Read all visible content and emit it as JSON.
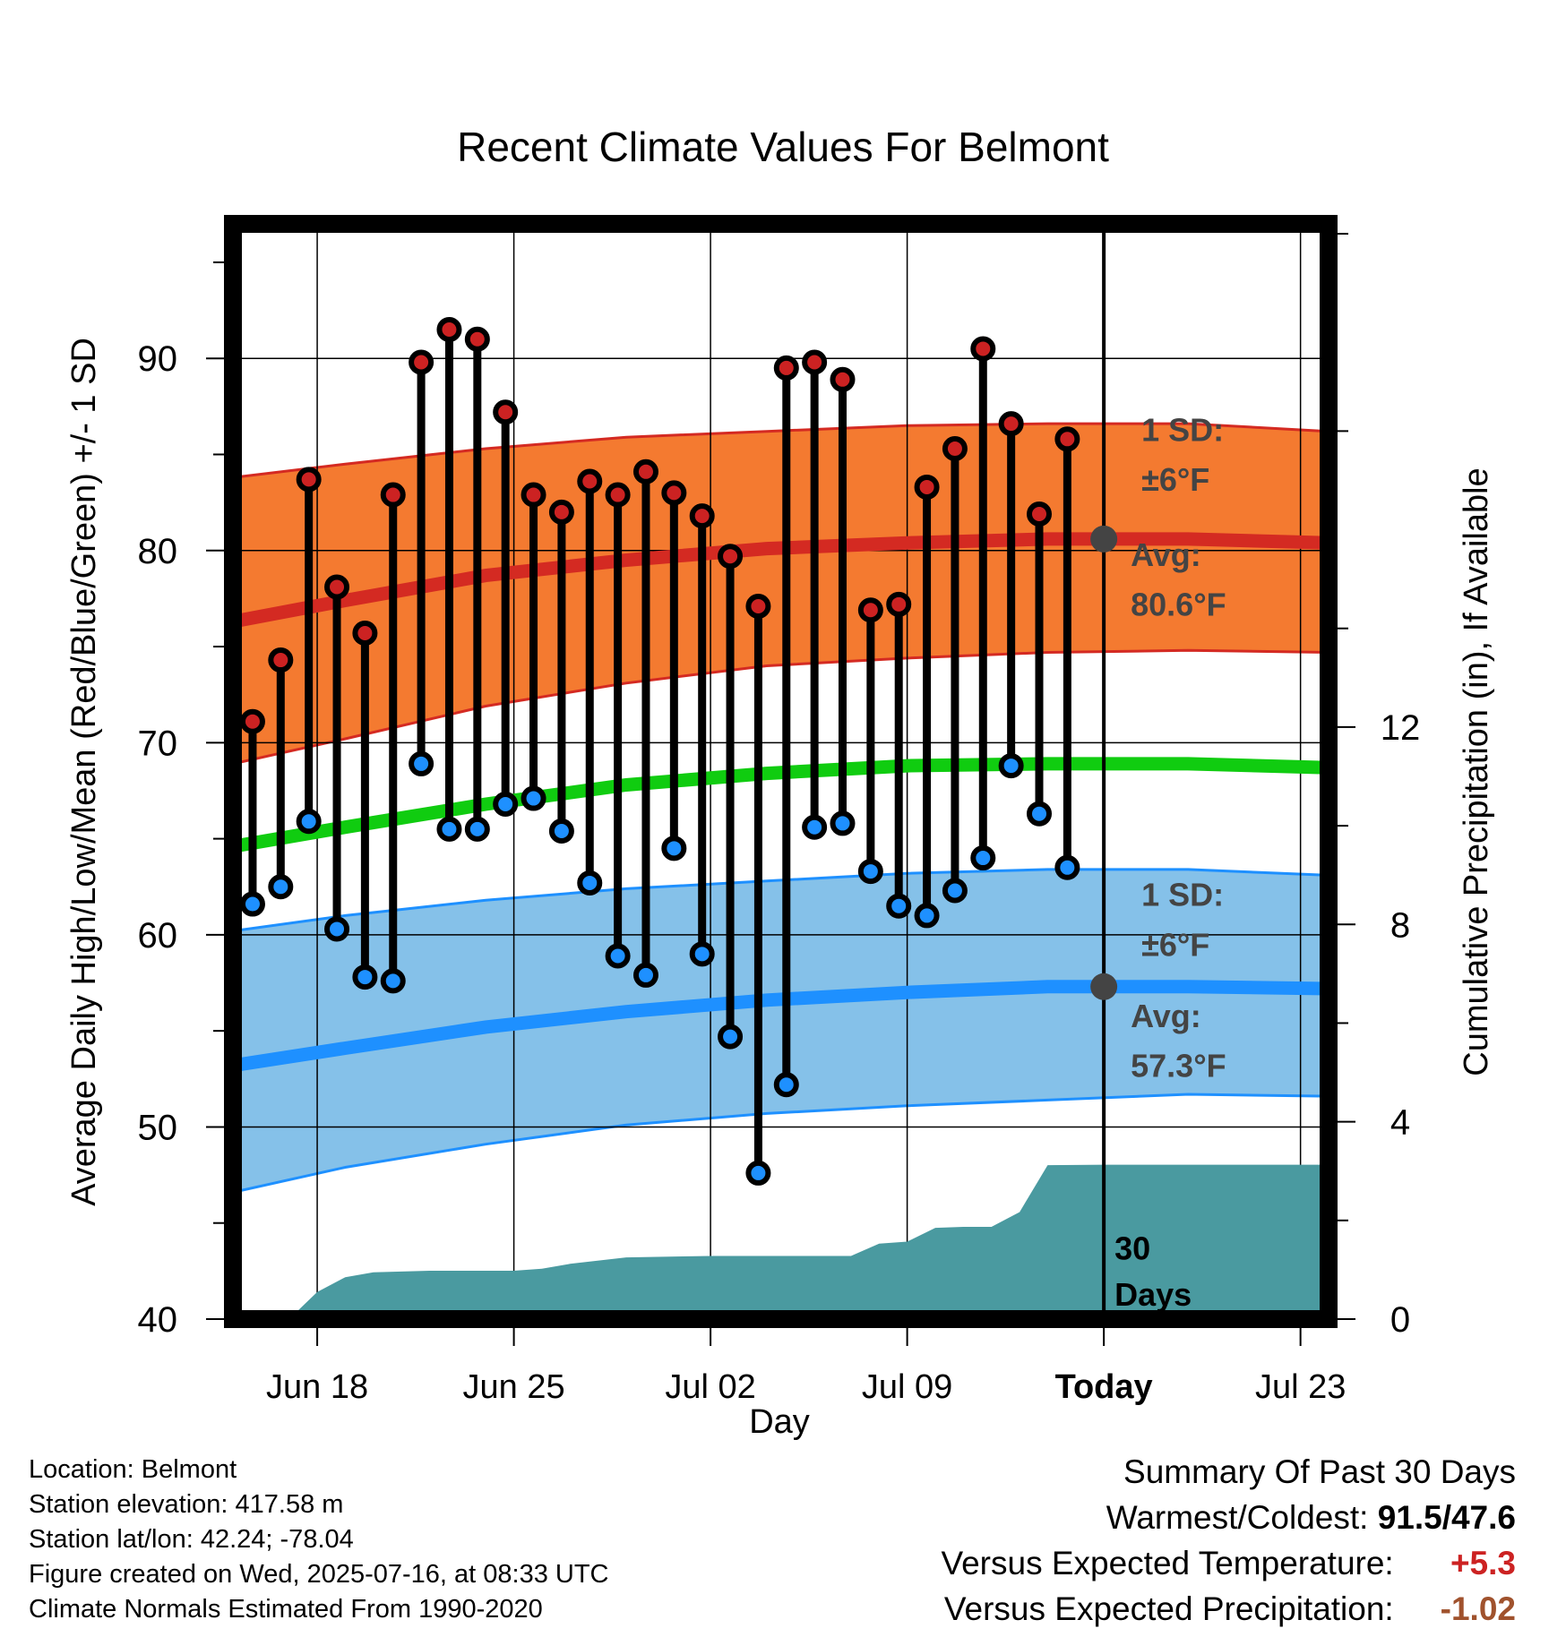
{
  "chart_data": {
    "type": "line",
    "title": "Recent Climate Values For Belmont",
    "xlabel": "Day",
    "ylabel": "Average Daily High/Low/Mean (Red/Blue/Green) +/- 1 SD",
    "y2label": "Cumulative Precipitation (in), If Available",
    "ylim": [
      40,
      97
    ],
    "y2lim": [
      0,
      22.2
    ],
    "yticks": [
      40,
      50,
      60,
      70,
      80,
      90
    ],
    "y2ticks": [
      0,
      4,
      8,
      12
    ],
    "xticks": [
      {
        "day": 2,
        "label": "Jun 18"
      },
      {
        "day": 9,
        "label": "Jun 25"
      },
      {
        "day": 16,
        "label": "Jul 02"
      },
      {
        "day": 23,
        "label": "Jul 09"
      },
      {
        "day": 30,
        "label": "Today"
      },
      {
        "day": 37,
        "label": "Jul 23"
      }
    ],
    "today_day": 30,
    "observed_days": [
      -0.3,
      0.7,
      1.7,
      2.7,
      3.7,
      4.7,
      5.7,
      6.7,
      7.7,
      8.7,
      9.7,
      10.7,
      11.7,
      12.7,
      13.7,
      14.7,
      15.7,
      16.7,
      17.7,
      18.7,
      19.7,
      20.7,
      21.7,
      22.7,
      23.7,
      24.7,
      25.7,
      26.7,
      27.7,
      28.7
    ],
    "series": [
      {
        "name": "High",
        "color": "#cc2222",
        "values": [
          71.1,
          74.3,
          83.7,
          78.1,
          75.7,
          82.9,
          89.8,
          91.5,
          91.0,
          87.2,
          82.9,
          82.0,
          83.6,
          82.9,
          84.1,
          83.0,
          81.8,
          79.7,
          77.1,
          89.5,
          89.8,
          88.9,
          76.9,
          77.2,
          83.3,
          85.3,
          90.5,
          86.6,
          81.9,
          85.8
        ]
      },
      {
        "name": "Low",
        "color": "#1e90ff",
        "values": [
          61.6,
          62.5,
          65.9,
          60.3,
          57.8,
          57.6,
          68.9,
          65.5,
          65.5,
          66.8,
          67.1,
          65.4,
          62.7,
          58.9,
          57.9,
          64.5,
          59.0,
          54.7,
          47.6,
          52.2,
          65.6,
          65.8,
          63.3,
          61.5,
          61.0,
          62.3,
          64.0,
          68.8,
          66.3,
          63.5
        ]
      }
    ],
    "normal_x": [
      -1,
      3,
      8,
      13,
      18,
      23,
      28,
      33,
      38
    ],
    "normal_high": [
      76.3,
      77.4,
      78.7,
      79.5,
      80.1,
      80.4,
      80.6,
      80.6,
      80.4
    ],
    "normal_high_upper": [
      83.8,
      84.5,
      85.3,
      85.9,
      86.2,
      86.5,
      86.6,
      86.6,
      86.2
    ],
    "normal_high_lower": [
      68.9,
      70.2,
      71.9,
      73.1,
      74.0,
      74.4,
      74.7,
      74.8,
      74.7
    ],
    "normal_mean": [
      64.6,
      65.6,
      66.8,
      67.8,
      68.4,
      68.8,
      68.9,
      68.9,
      68.7
    ],
    "normal_low": [
      53.2,
      54.1,
      55.2,
      56.0,
      56.6,
      57.0,
      57.3,
      57.3,
      57.2
    ],
    "normal_low_upper": [
      60.2,
      61.0,
      61.8,
      62.4,
      62.8,
      63.2,
      63.4,
      63.4,
      63.1
    ],
    "normal_low_lower": [
      46.6,
      47.9,
      49.1,
      50.1,
      50.7,
      51.1,
      51.4,
      51.7,
      51.6
    ],
    "precip_x": [
      -1,
      1.0,
      2.0,
      3.0,
      4.0,
      6.0,
      7.0,
      8.0,
      9.0,
      10.0,
      11.0,
      13.0,
      15.0,
      16.0,
      18.0,
      20.0,
      21.0,
      22.0,
      23.0,
      24.0,
      25.0,
      26.0,
      27.0,
      28.0,
      30.0,
      38.0
    ],
    "precip_values": [
      0,
      0,
      0.55,
      0.85,
      0.95,
      0.98,
      0.98,
      0.98,
      0.98,
      1.02,
      1.12,
      1.25,
      1.27,
      1.28,
      1.28,
      1.28,
      1.28,
      1.53,
      1.57,
      1.85,
      1.87,
      1.87,
      2.17,
      3.12,
      3.13,
      3.13
    ],
    "annotations": {
      "high_sd_label": "1 SD:",
      "high_sd_value": "±6°F",
      "high_avg_label": "Avg:",
      "high_avg_value": "80.6°F",
      "low_sd_label": "1 SD:",
      "low_sd_value": "±6°F",
      "low_avg_label": "Avg:",
      "low_avg_value": "57.3°F",
      "days_number": "30",
      "days_word": "Days"
    },
    "today_high_avg": 80.6,
    "today_low_avg": 57.3
  },
  "footer": {
    "location": "Location: Belmont",
    "elevation": "Station elevation: 417.58 m",
    "latlon": "Station lat/lon: 42.24; -78.04",
    "created": "Figure created on Wed, 2025-07-16, at 08:33 UTC",
    "normals": "Climate Normals Estimated From 1990-2020"
  },
  "summary": {
    "title": "Summary Of Past 30 Days",
    "warm_cold_label": "Warmest/Coldest:",
    "warm_cold_value": "91.5/47.6",
    "temp_label": "Versus Expected Temperature:",
    "temp_value": "+5.3",
    "precip_label": "Versus Expected Precipitation:",
    "precip_value": "-1.02"
  },
  "colors": {
    "high_band": "#f47a30",
    "high_line": "#d42a22",
    "low_band": "#85c1e9",
    "low_line": "#1e90ff",
    "mean_line": "#10cc10",
    "precip_fill": "#4a9aa0",
    "marker_edge": "#000000"
  }
}
